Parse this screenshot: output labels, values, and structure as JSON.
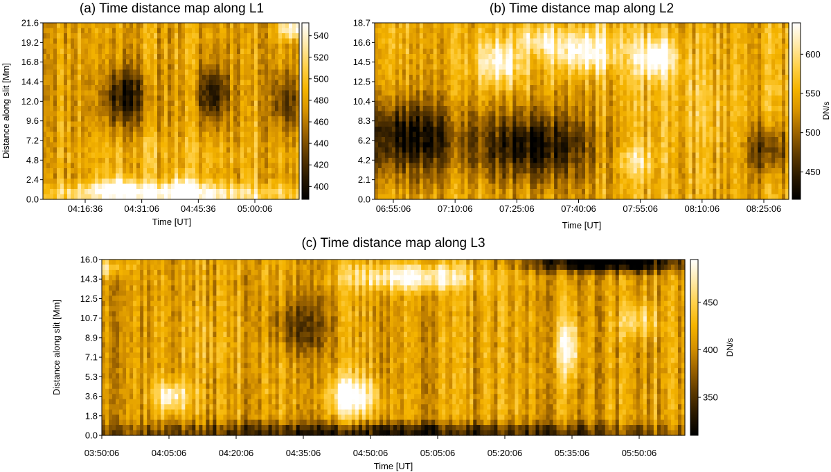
{
  "colormap": [
    "#000000",
    "#2a1900",
    "#5e3a00",
    "#9c6300",
    "#d69200",
    "#f5b400",
    "#ffd048",
    "#ffe9a8",
    "#ffffff"
  ],
  "chart_data": [
    {
      "type": "heatmap",
      "title": "(a) Time distance map along L1",
      "xlabel": "Time [UT]",
      "ylabel": "Distance along slit [Mm]",
      "x_ticks": [
        "04:16:36",
        "04:31:06",
        "04:45:36",
        "05:00:06"
      ],
      "y_ticks": [
        "0.0",
        "2.4",
        "4.8",
        "7.2",
        "9.6",
        "12.0",
        "14.4",
        "16.8",
        "19.2",
        "21.6"
      ],
      "ylim": [
        0,
        21.6
      ],
      "colorbar": {
        "label": "",
        "ticks": [
          "400",
          "420",
          "440",
          "460",
          "480",
          "500",
          "520",
          "540"
        ],
        "range": [
          388,
          552
        ]
      }
    },
    {
      "type": "heatmap",
      "title": "(b) Time distance map along L2",
      "xlabel": "Time [UT]",
      "ylabel": "",
      "x_ticks": [
        "06:55:06",
        "07:10:06",
        "07:25:06",
        "07:40:06",
        "07:55:06",
        "08:10:06",
        "08:25:06"
      ],
      "y_ticks": [
        "0.0",
        "2.1",
        "4.2",
        "6.2",
        "8.3",
        "10.4",
        "12.5",
        "14.5",
        "16.6",
        "18.7"
      ],
      "ylim": [
        0,
        18.7
      ],
      "colorbar": {
        "label": "DN/s",
        "ticks": [
          "450",
          "500",
          "550",
          "600"
        ],
        "range": [
          415,
          640
        ]
      }
    },
    {
      "type": "heatmap",
      "title": "(c) Time distance map along L3",
      "xlabel": "Time [UT]",
      "ylabel": "Distance along slit [Mm]",
      "x_ticks": [
        "03:50:06",
        "04:05:06",
        "04:20:06",
        "04:35:06",
        "04:50:06",
        "05:05:06",
        "05:20:06",
        "05:35:06",
        "05:50:06"
      ],
      "y_ticks": [
        "0.0",
        "1.8",
        "3.6",
        "5.3",
        "7.1",
        "8.9",
        "10.7",
        "12.5",
        "14.3",
        "16.0"
      ],
      "ylim": [
        0,
        16.0
      ],
      "colorbar": {
        "label": "DN/s",
        "ticks": [
          "350",
          "400",
          "450"
        ],
        "range": [
          310,
          495
        ]
      }
    }
  ]
}
